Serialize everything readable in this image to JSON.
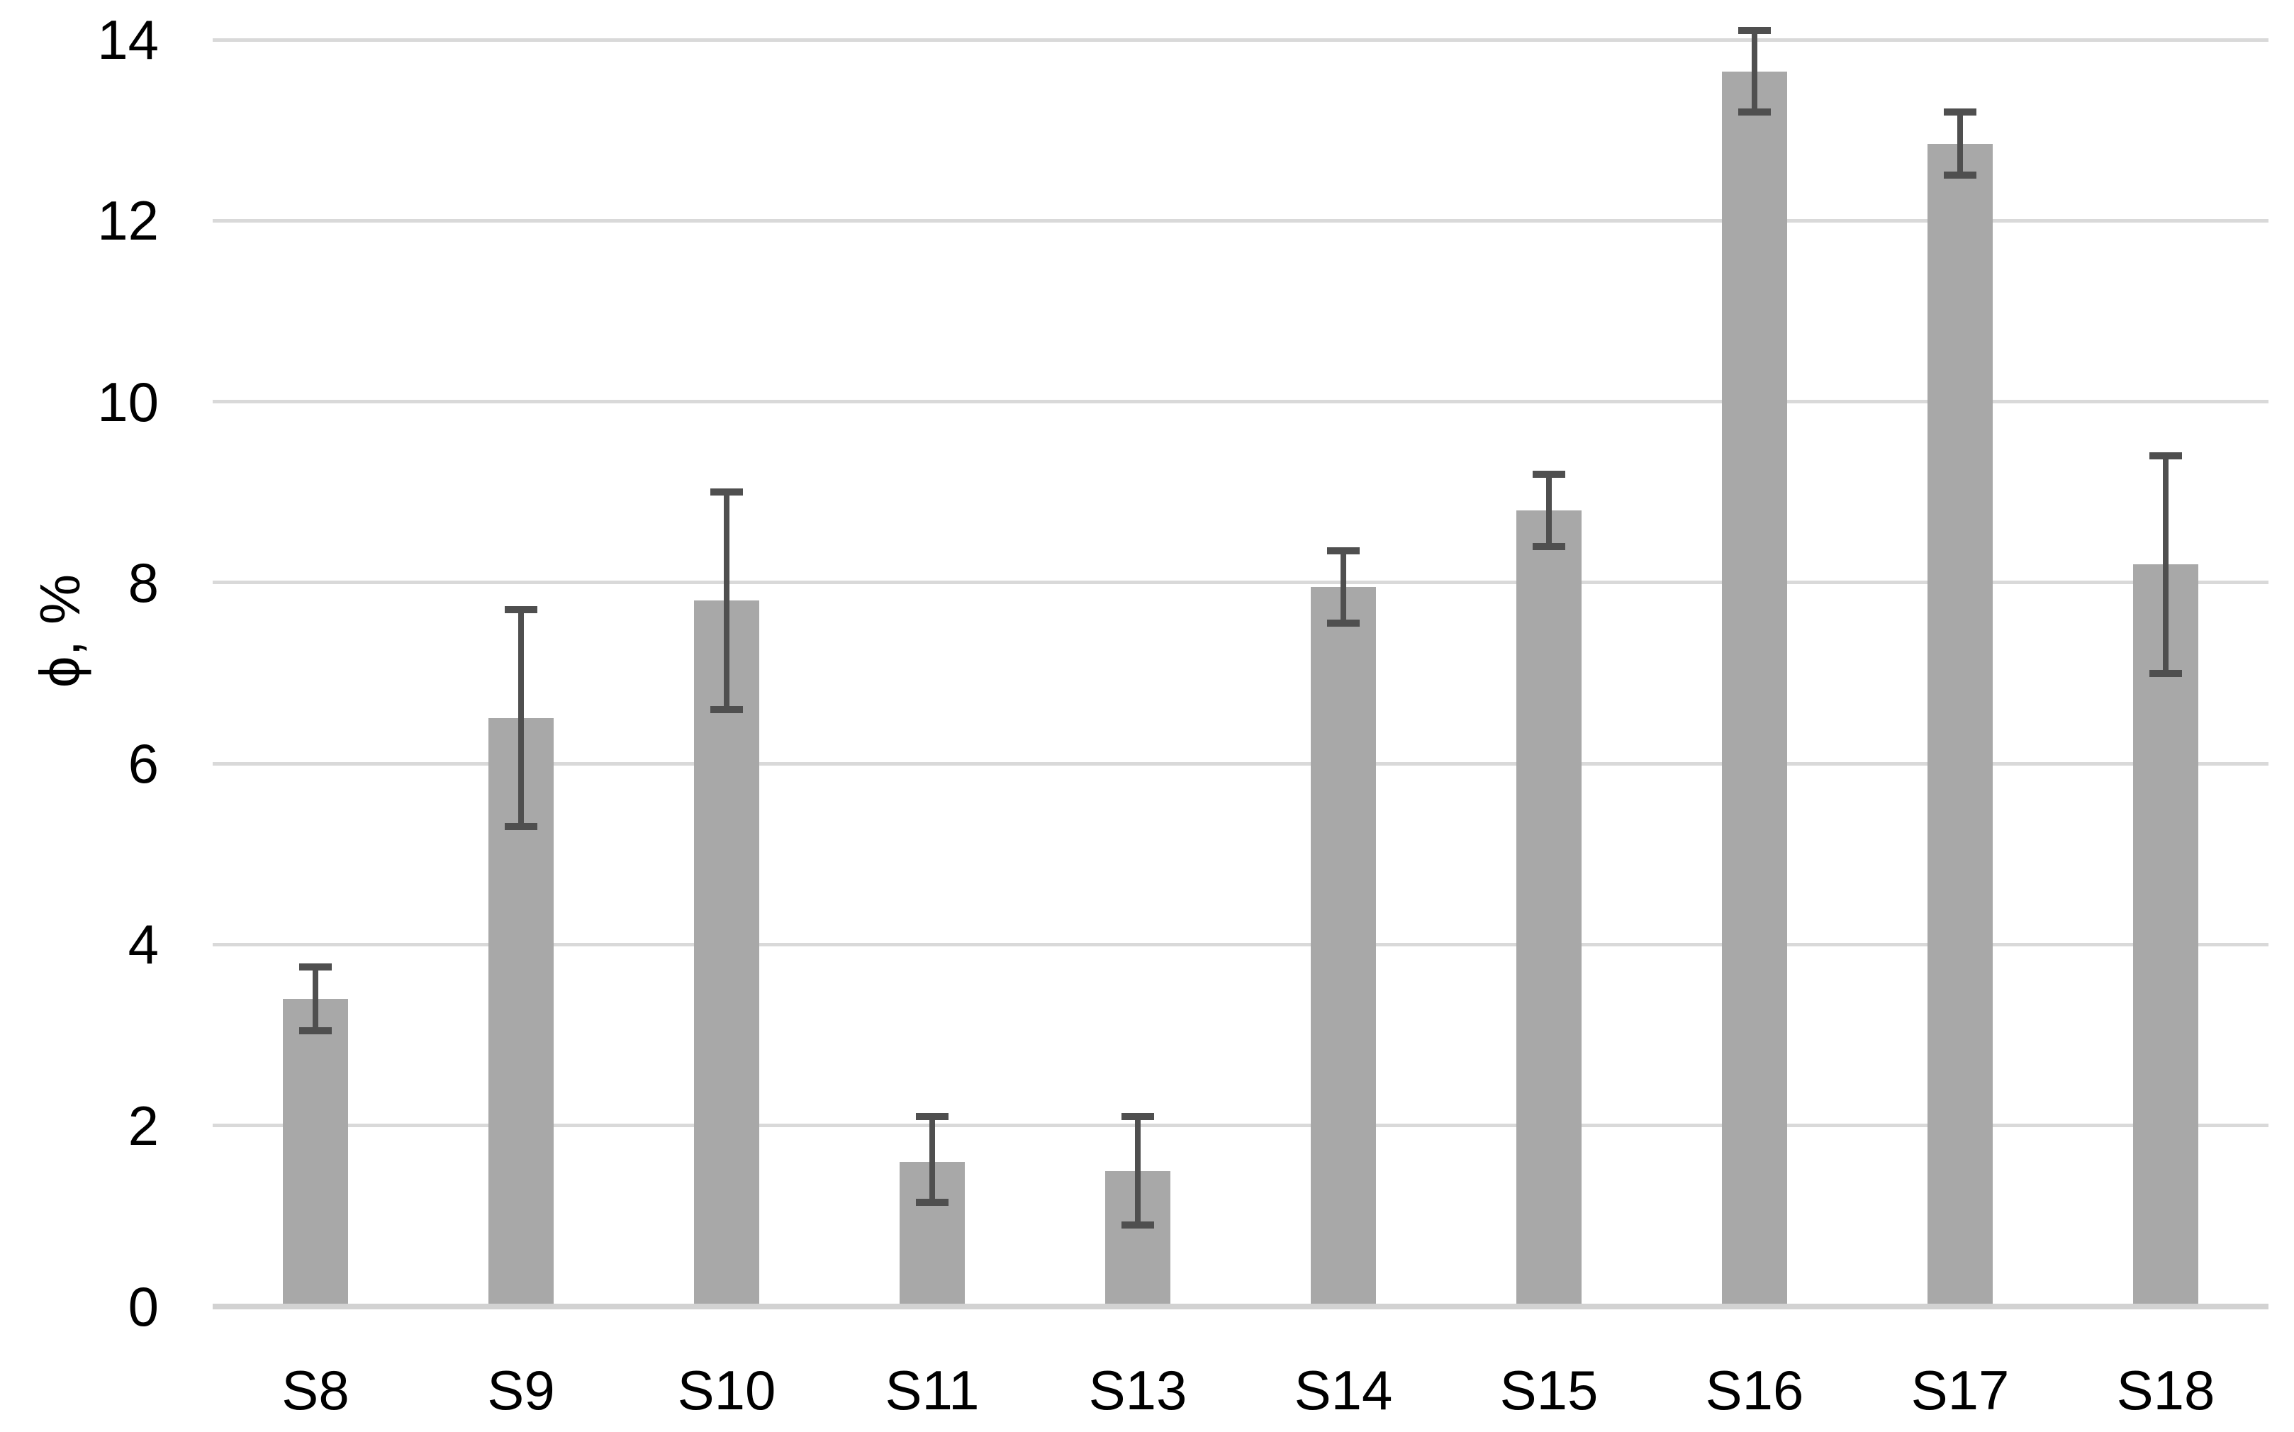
{
  "chart_data": {
    "type": "bar",
    "title": "",
    "xlabel": "",
    "ylabel": "ϕ, %",
    "categories": [
      "S8",
      "S9",
      "S10",
      "S11",
      "S13",
      "S14",
      "S15",
      "S16",
      "S17",
      "S18"
    ],
    "values": [
      3.4,
      6.5,
      7.8,
      1.6,
      1.5,
      7.95,
      8.8,
      13.65,
      12.85,
      8.2
    ],
    "error_low": [
      3.05,
      5.3,
      6.6,
      1.15,
      0.9,
      7.55,
      8.4,
      13.2,
      12.5,
      7.0
    ],
    "error_high": [
      3.75,
      7.7,
      9.0,
      2.1,
      2.1,
      8.35,
      9.2,
      14.1,
      13.2,
      9.4
    ],
    "yticks": [
      0,
      2,
      4,
      6,
      8,
      10,
      12,
      14
    ],
    "ylim": [
      0,
      14
    ],
    "grid": "horizontal",
    "legend": "none",
    "colors": {
      "bar_fill": "#A8A8A8",
      "error_bar": "#4F4F4F",
      "gridline": "#D9D9D9",
      "axis_line": "#D2D2D2",
      "text": "#000000",
      "background": "#FFFFFF"
    }
  }
}
